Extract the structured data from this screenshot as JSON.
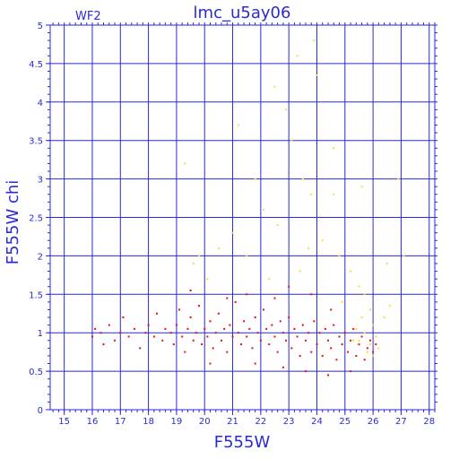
{
  "chart_data": {
    "type": "scatter",
    "title": "lmc_u5ay06",
    "corner_label": "WF2",
    "xlabel": "F555W",
    "ylabel": "F555W  chi",
    "xlim": [
      14.5,
      28.2
    ],
    "ylim": [
      0,
      5
    ],
    "x_ticks": [
      "15",
      "16",
      "17",
      "18",
      "19",
      "20",
      "21",
      "22",
      "23",
      "24",
      "25",
      "26",
      "27",
      "28"
    ],
    "y_ticks": [
      "0",
      "0.5",
      "1",
      "1.5",
      "2",
      "2.5",
      "3",
      "3.5",
      "4",
      "4.5",
      "5"
    ],
    "grid": true,
    "colors": {
      "axis": "#2a2ad4",
      "primary_points": "#e81010",
      "secondary_points": "#f5e02a"
    },
    "series": [
      {
        "color": "#e81010",
        "points": [
          [
            16.0,
            0.95
          ],
          [
            16.1,
            1.05
          ],
          [
            16.3,
            1.0
          ],
          [
            16.4,
            0.85
          ],
          [
            16.6,
            1.1
          ],
          [
            16.8,
            0.9
          ],
          [
            17.0,
            1.0
          ],
          [
            17.1,
            1.2
          ],
          [
            17.3,
            0.95
          ],
          [
            17.5,
            1.05
          ],
          [
            17.7,
            0.8
          ],
          [
            17.9,
            1.0
          ],
          [
            18.0,
            1.1
          ],
          [
            18.2,
            0.95
          ],
          [
            18.3,
            1.25
          ],
          [
            18.5,
            0.9
          ],
          [
            18.6,
            1.05
          ],
          [
            18.8,
            1.0
          ],
          [
            18.9,
            0.85
          ],
          [
            19.0,
            1.1
          ],
          [
            19.1,
            1.3
          ],
          [
            19.2,
            0.95
          ],
          [
            19.3,
            0.75
          ],
          [
            19.4,
            1.05
          ],
          [
            19.5,
            1.2
          ],
          [
            19.6,
            0.9
          ],
          [
            19.7,
            1.0
          ],
          [
            19.8,
            1.35
          ],
          [
            19.9,
            0.85
          ],
          [
            20.0,
            1.05
          ],
          [
            20.1,
            0.95
          ],
          [
            20.2,
            1.15
          ],
          [
            20.3,
            0.8
          ],
          [
            20.4,
            1.0
          ],
          [
            20.5,
            1.25
          ],
          [
            20.6,
            0.9
          ],
          [
            20.7,
            1.05
          ],
          [
            20.8,
            0.75
          ],
          [
            20.9,
            1.1
          ],
          [
            21.0,
            0.95
          ],
          [
            21.1,
            1.4
          ],
          [
            21.2,
            1.0
          ],
          [
            21.3,
            0.85
          ],
          [
            21.4,
            1.15
          ],
          [
            21.5,
            0.95
          ],
          [
            21.6,
            1.05
          ],
          [
            21.7,
            0.8
          ],
          [
            21.8,
            1.2
          ],
          [
            21.9,
            1.0
          ],
          [
            22.0,
            0.9
          ],
          [
            22.1,
            1.3
          ],
          [
            22.2,
            1.05
          ],
          [
            22.3,
            0.85
          ],
          [
            22.4,
            1.1
          ],
          [
            22.5,
            0.95
          ],
          [
            22.6,
            0.75
          ],
          [
            22.7,
            1.15
          ],
          [
            22.8,
            1.0
          ],
          [
            22.9,
            0.9
          ],
          [
            23.0,
            1.2
          ],
          [
            23.1,
            0.8
          ],
          [
            23.2,
            1.05
          ],
          [
            23.3,
            0.95
          ],
          [
            23.4,
            0.7
          ],
          [
            23.5,
            1.1
          ],
          [
            23.6,
            0.9
          ],
          [
            23.7,
            1.0
          ],
          [
            23.8,
            0.75
          ],
          [
            23.9,
            1.15
          ],
          [
            24.0,
            0.85
          ],
          [
            24.1,
            1.0
          ],
          [
            24.2,
            0.7
          ],
          [
            24.3,
            1.05
          ],
          [
            24.4,
            0.9
          ],
          [
            24.5,
            0.8
          ],
          [
            24.6,
            1.1
          ],
          [
            24.7,
            0.65
          ],
          [
            24.8,
            0.95
          ],
          [
            24.9,
            0.85
          ],
          [
            25.0,
            1.0
          ],
          [
            25.1,
            0.75
          ],
          [
            25.2,
            0.9
          ],
          [
            25.3,
            1.05
          ],
          [
            25.4,
            0.7
          ],
          [
            25.5,
            0.85
          ],
          [
            25.6,
            0.95
          ],
          [
            25.7,
            0.65
          ],
          [
            25.8,
            0.8
          ],
          [
            25.9,
            0.9
          ],
          [
            26.0,
            0.75
          ],
          [
            26.1,
            0.85
          ],
          [
            21.5,
            1.5
          ],
          [
            22.5,
            1.45
          ],
          [
            23.0,
            1.6
          ],
          [
            23.8,
            1.5
          ],
          [
            24.5,
            1.3
          ],
          [
            20.2,
            0.6
          ],
          [
            21.8,
            0.6
          ],
          [
            22.8,
            0.55
          ],
          [
            23.6,
            0.5
          ],
          [
            24.4,
            0.45
          ],
          [
            25.2,
            0.5
          ],
          [
            19.5,
            1.55
          ],
          [
            20.8,
            1.45
          ]
        ]
      },
      {
        "color": "#f5e02a",
        "points": [
          [
            25.5,
            0.9
          ],
          [
            25.7,
            1.0
          ],
          [
            25.9,
            0.85
          ],
          [
            26.0,
            1.1
          ],
          [
            26.1,
            0.95
          ],
          [
            25.6,
            1.2
          ],
          [
            25.8,
            0.75
          ],
          [
            26.2,
            0.8
          ],
          [
            25.4,
            1.05
          ],
          [
            25.9,
            1.3
          ],
          [
            26.0,
            0.7
          ],
          [
            25.3,
            0.9
          ],
          [
            25.7,
            1.5
          ],
          [
            26.4,
            1.2
          ],
          [
            26.6,
            1.35
          ],
          [
            25.2,
            1.8
          ],
          [
            25.5,
            1.6
          ],
          [
            24.8,
            2.0
          ],
          [
            24.2,
            2.2
          ],
          [
            23.8,
            2.8
          ],
          [
            23.5,
            3.0
          ],
          [
            23.1,
            3.5
          ],
          [
            22.9,
            3.9
          ],
          [
            22.5,
            4.2
          ],
          [
            23.3,
            4.6
          ],
          [
            23.9,
            4.8
          ],
          [
            24.0,
            4.35
          ],
          [
            24.6,
            3.4
          ],
          [
            21.2,
            3.7
          ],
          [
            21.8,
            3.0
          ],
          [
            22.6,
            2.4
          ],
          [
            20.5,
            2.1
          ],
          [
            19.8,
            2.0
          ],
          [
            19.3,
            3.2
          ],
          [
            21.0,
            2.3
          ],
          [
            22.1,
            2.6
          ],
          [
            24.6,
            2.8
          ],
          [
            25.6,
            2.9
          ],
          [
            26.9,
            3.0
          ],
          [
            27.1,
            2.0
          ],
          [
            26.5,
            1.9
          ],
          [
            24.9,
            1.4
          ],
          [
            23.4,
            1.8
          ],
          [
            22.3,
            1.7
          ],
          [
            21.5,
            2.0
          ],
          [
            20.1,
            1.7
          ],
          [
            19.6,
            1.9
          ],
          [
            23.7,
            2.1
          ]
        ]
      }
    ]
  }
}
